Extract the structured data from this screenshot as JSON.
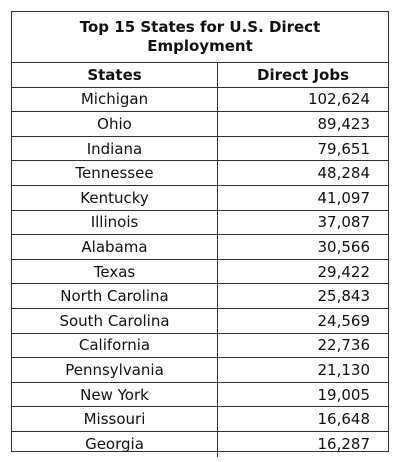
{
  "chart_data": {
    "type": "table",
    "title": "Top 15 States for U.S. Direct Employment",
    "columns": [
      "States",
      "Direct Jobs"
    ],
    "rows": [
      {
        "state": "Michigan",
        "jobs": "102,624"
      },
      {
        "state": "Ohio",
        "jobs": "89,423"
      },
      {
        "state": "Indiana",
        "jobs": "79,651"
      },
      {
        "state": "Tennessee",
        "jobs": "48,284"
      },
      {
        "state": "Kentucky",
        "jobs": "41,097"
      },
      {
        "state": "Illinois",
        "jobs": "37,087"
      },
      {
        "state": "Alabama",
        "jobs": "30,566"
      },
      {
        "state": "Texas",
        "jobs": "29,422"
      },
      {
        "state": "North Carolina",
        "jobs": "25,843"
      },
      {
        "state": "South Carolina",
        "jobs": "24,569"
      },
      {
        "state": "California",
        "jobs": "22,736"
      },
      {
        "state": "Pennsylvania",
        "jobs": "21,130"
      },
      {
        "state": "New York",
        "jobs": "19,005"
      },
      {
        "state": "Missouri",
        "jobs": "16,648"
      },
      {
        "state": "Georgia",
        "jobs": "16,287"
      }
    ]
  }
}
